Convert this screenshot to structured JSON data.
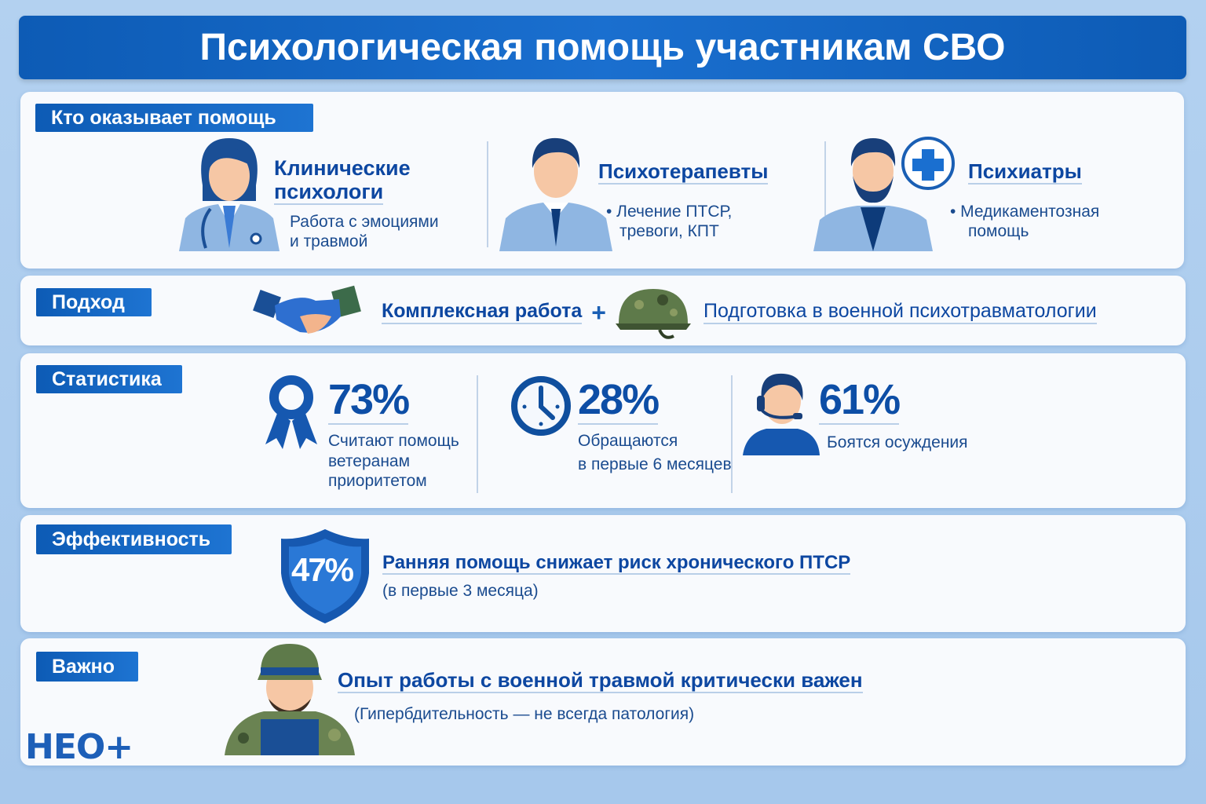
{
  "title": "Психологическая помощь участникам СВО",
  "sections": {
    "who": {
      "label": "Кто оказывает помощь",
      "items": [
        {
          "title_1": "Клинические",
          "title_2": "психологи",
          "text_1": "Работа с эмоциями",
          "text_2": "и травмой"
        },
        {
          "title": "Психотерапевты",
          "text_1": "• Лечение ПТСР,",
          "text_2": "тревоги, КПТ"
        },
        {
          "title": "Психиатры",
          "text_1": "• Медикаментозная",
          "text_2": "помощь"
        }
      ]
    },
    "approach": {
      "label": "Подход",
      "item_1": "Комплексная работа",
      "plus": "+",
      "item_2": "Подготовка в военной психотравматологии"
    },
    "stats": {
      "label": "Статистика",
      "items": [
        {
          "value": "73%",
          "text_1": "Считают помощь",
          "text_2": "ветеранам",
          "text_3": "приоритетом",
          "icon": "award-ribbon-icon"
        },
        {
          "value": "28%",
          "text_1": "Обращаются",
          "text_2": "в первые 6 месяцев",
          "icon": "clock-icon"
        },
        {
          "value": "61%",
          "text_1": "Боятся осуждения",
          "icon": "person-headset-icon"
        }
      ]
    },
    "effect": {
      "label": "Эффективность",
      "value": "47%",
      "text": "Ранняя помощь снижает риск хронического ПТСР",
      "note": "(в первые 3 месяца)"
    },
    "important": {
      "label": "Важно",
      "text": "Опыт работы с военной травмой критически важен",
      "note": "(Гипербдительность — не всегда патология)"
    }
  },
  "logo": "НЕО+",
  "colors": {
    "primary": "#0d5bb5",
    "background": "#a9cbee",
    "text": "#0d47a1"
  }
}
